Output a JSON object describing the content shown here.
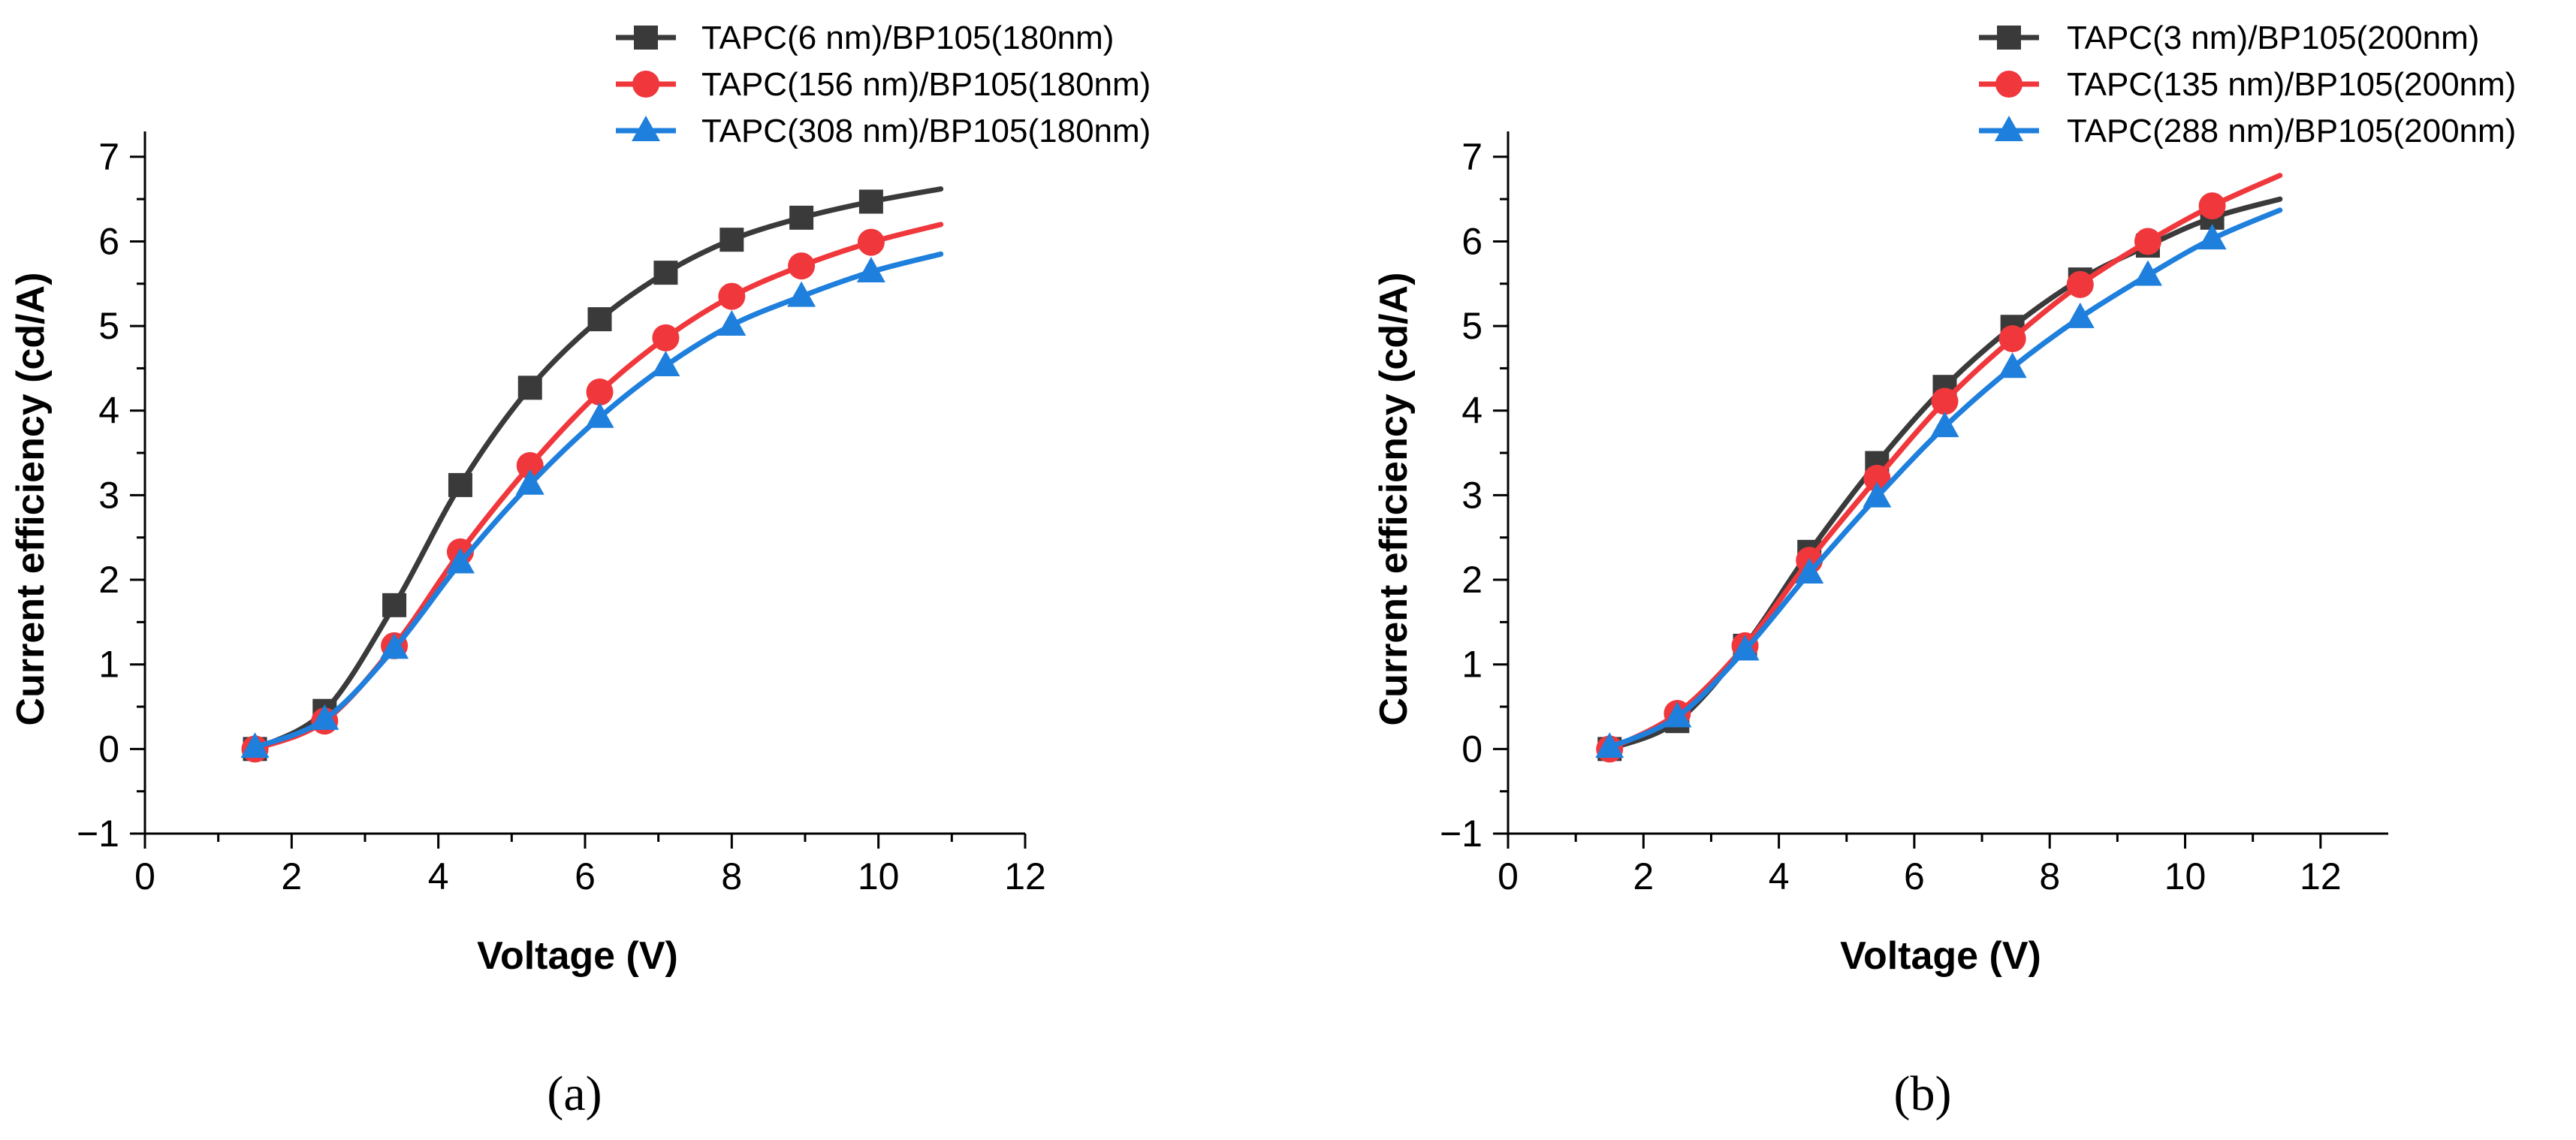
{
  "chart_data": [
    {
      "type": "line",
      "panel_label": "(a)",
      "xlabel": "Voltage (V)",
      "ylabel": "Current efficiency (cd/A)",
      "xlim": [
        0,
        12
      ],
      "ylim": [
        -1,
        7.3
      ],
      "xticks": [
        0,
        2,
        4,
        6,
        8,
        10,
        12
      ],
      "yticks": [
        -1,
        0,
        1,
        2,
        3,
        4,
        5,
        6,
        7
      ],
      "legend_position": "top-right",
      "series": [
        {
          "name": "TAPC(6 nm)/BP105(180nm)",
          "color": "#3a3a3a",
          "marker": "square",
          "x": [
            1.5,
            2.45,
            3.4,
            4.3,
            5.25,
            6.2,
            7.1,
            8.0,
            8.95,
            9.9
          ],
          "y": [
            0.0,
            0.45,
            1.7,
            3.12,
            4.27,
            5.08,
            5.63,
            6.02,
            6.28,
            6.47
          ],
          "end": [
            10.85,
            6.62
          ]
        },
        {
          "name": "TAPC(156 nm)/BP105(180nm)",
          "color": "#f0373c",
          "marker": "circle",
          "x": [
            1.5,
            2.45,
            3.4,
            4.3,
            5.25,
            6.2,
            7.1,
            8.0,
            8.95,
            9.9
          ],
          "y": [
            0.0,
            0.33,
            1.22,
            2.33,
            3.35,
            4.22,
            4.86,
            5.35,
            5.71,
            5.99
          ],
          "end": [
            10.85,
            6.2
          ]
        },
        {
          "name": "TAPC(308 nm)/BP105(180nm)",
          "color": "#1f7fdc",
          "marker": "triangle",
          "x": [
            1.5,
            2.45,
            3.4,
            4.3,
            5.25,
            6.2,
            7.1,
            8.0,
            8.95,
            9.9
          ],
          "y": [
            0.02,
            0.35,
            1.19,
            2.2,
            3.13,
            3.92,
            4.53,
            5.01,
            5.35,
            5.64
          ],
          "end": [
            10.85,
            5.85
          ]
        }
      ]
    },
    {
      "type": "line",
      "panel_label": "(b)",
      "xlabel": "Voltage (V)",
      "ylabel": "Current efficiency (cd/A)",
      "xlim": [
        0,
        13
      ],
      "ylim": [
        -1,
        7.3
      ],
      "xticks": [
        0,
        2,
        4,
        6,
        8,
        10,
        12
      ],
      "yticks": [
        -1,
        0,
        1,
        2,
        3,
        4,
        5,
        6,
        7
      ],
      "legend_position": "top-right",
      "series": [
        {
          "name": "TAPC(3 nm)/BP105(200nm)",
          "color": "#3a3a3a",
          "marker": "square",
          "x": [
            1.5,
            2.5,
            3.5,
            4.45,
            5.45,
            6.45,
            7.45,
            8.45,
            9.45,
            10.4
          ],
          "y": [
            0.0,
            0.33,
            1.22,
            2.33,
            3.38,
            4.28,
            4.99,
            5.55,
            5.95,
            6.28
          ],
          "end": [
            11.4,
            6.5
          ]
        },
        {
          "name": "TAPC(135 nm)/BP105(200nm)",
          "color": "#f0373c",
          "marker": "circle",
          "x": [
            1.5,
            2.5,
            3.5,
            4.45,
            5.45,
            6.45,
            7.45,
            8.45,
            9.45,
            10.4
          ],
          "y": [
            0.0,
            0.42,
            1.22,
            2.23,
            3.2,
            4.11,
            4.85,
            5.49,
            6.0,
            6.42
          ],
          "end": [
            11.4,
            6.78
          ]
        },
        {
          "name": "TAPC(288 nm)/BP105(200nm)",
          "color": "#1f7fdc",
          "marker": "triangle",
          "x": [
            1.5,
            2.5,
            3.5,
            4.45,
            5.45,
            6.45,
            7.45,
            8.45,
            9.45,
            10.4
          ],
          "y": [
            0.02,
            0.38,
            1.17,
            2.08,
            2.98,
            3.81,
            4.51,
            5.1,
            5.6,
            6.03
          ],
          "end": [
            11.4,
            6.37
          ]
        }
      ]
    }
  ]
}
